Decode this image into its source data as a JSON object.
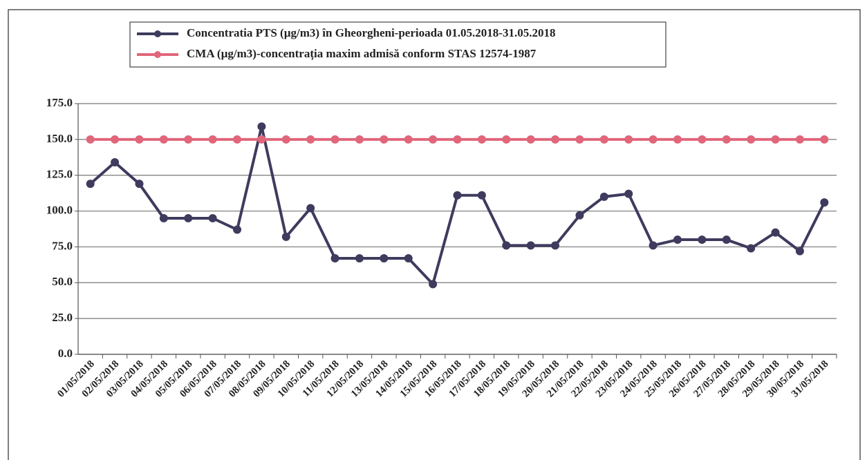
{
  "chart_data": {
    "type": "line",
    "categories": [
      "01/05/2018",
      "02/05/2018",
      "03/05/2018",
      "04/05/2018",
      "05/05/2018",
      "06/05/2018",
      "07/05/2018",
      "08/05/2018",
      "09/05/2018",
      "10/05/2018",
      "11/05/2018",
      "12/05/2018",
      "13/05/2018",
      "14/05/2018",
      "15/05/2018",
      "16/05/2018",
      "17/05/2018",
      "18/05/2018",
      "19/05/2018",
      "20/05/2018",
      "21/05/2018",
      "22/05/2018",
      "23/05/2018",
      "24/05/2018",
      "25/05/2018",
      "26/05/2018",
      "27/05/2018",
      "28/05/2018",
      "29/05/2018",
      "30/05/2018",
      "31/05/2018"
    ],
    "series": [
      {
        "name": "Concentratia PTS (µg/m3) în Gheorgheni-perioada 01.05.2018-31.05.2018",
        "color": "#3e3b5e",
        "values": [
          119,
          134,
          119,
          95,
          95,
          95,
          87,
          159,
          82,
          102,
          67,
          67,
          67,
          67,
          49,
          111,
          111,
          76,
          76,
          76,
          97,
          110,
          112,
          76,
          80,
          80,
          80,
          74,
          85,
          72,
          106
        ]
      },
      {
        "name": "CMA (µg/m3)-concentrația maxim admisă conform STAS 12574-1987",
        "color": "#e0667a",
        "values": [
          150,
          150,
          150,
          150,
          150,
          150,
          150,
          150,
          150,
          150,
          150,
          150,
          150,
          150,
          150,
          150,
          150,
          150,
          150,
          150,
          150,
          150,
          150,
          150,
          150,
          150,
          150,
          150,
          150,
          150,
          150
        ]
      }
    ],
    "ylim": [
      0,
      175
    ],
    "yticks": [
      {
        "value": 0,
        "label": "0.0"
      },
      {
        "value": 25,
        "label": "25.0"
      },
      {
        "value": 50,
        "label": "50.0"
      },
      {
        "value": 75,
        "label": "75.0"
      },
      {
        "value": 100,
        "label": "100.0"
      },
      {
        "value": 125,
        "label": "125.0"
      },
      {
        "value": 150,
        "label": "150.0"
      },
      {
        "value": 175,
        "label": "175.0"
      }
    ],
    "grid": true
  }
}
